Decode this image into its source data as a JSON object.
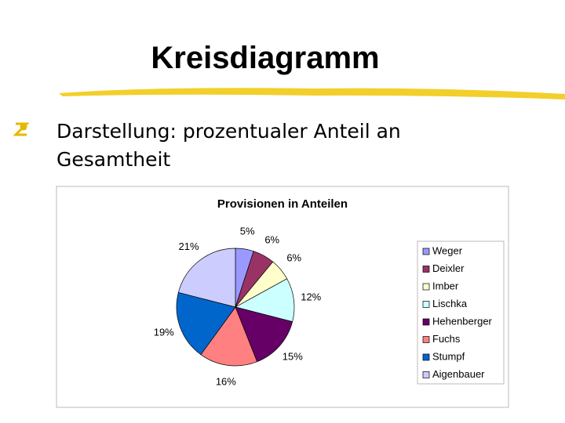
{
  "slide": {
    "title": "Kreisdiagramm",
    "bullet": "Darstellung: prozentualer Anteil an Gesamtheit"
  },
  "chart_data": {
    "type": "pie",
    "title": "Provisionen in Anteilen",
    "categories": [
      "Weger",
      "Deixler",
      "Imber",
      "Lischka",
      "Hehenberger",
      "Fuchs",
      "Stumpf",
      "Aigenbauer"
    ],
    "values": [
      5,
      6,
      6,
      12,
      15,
      16,
      19,
      21
    ],
    "value_labels": [
      "5%",
      "6%",
      "6%",
      "12%",
      "15%",
      "16%",
      "19%",
      "21%"
    ],
    "colors": [
      "#9999ff",
      "#993366",
      "#ffffcc",
      "#ccffff",
      "#660066",
      "#ff8080",
      "#0066cc",
      "#ccccff"
    ],
    "legend": "right"
  }
}
